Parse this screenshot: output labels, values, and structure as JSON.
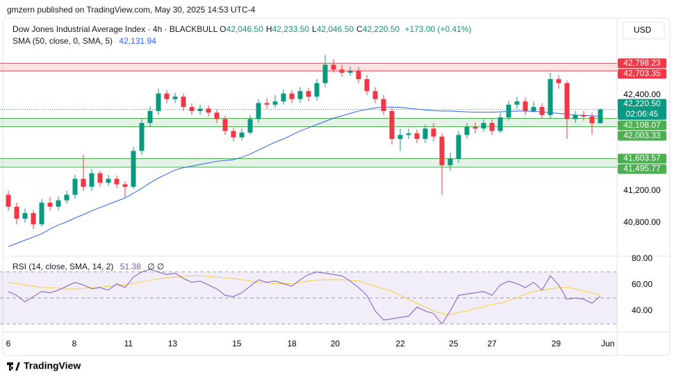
{
  "header": {
    "published": "gmzern published on TradingView.com, May 30, 2025 14:53 UTC-4",
    "symbol": "Dow Jones Industrial Average Index · 4h · BLACKBULL",
    "ohlc": [
      {
        "key": "O",
        "value": "42,046.50"
      },
      {
        "key": "H",
        "value": "42,233.50"
      },
      {
        "key": "L",
        "value": "42,046.50"
      },
      {
        "key": "C",
        "value": "42,220.50"
      }
    ],
    "change": "+173.00 (+0.41%)",
    "currency": "USD"
  },
  "footer": {
    "brand": "TradingView"
  },
  "chart_data": [
    {
      "type": "candlestick",
      "up_color": "#089981",
      "down_color": "#f23645",
      "xlim": [
        -1,
        73
      ],
      "xticks": [
        {
          "value": 0,
          "label": "6"
        },
        {
          "value": 7.9,
          "label": "8"
        },
        {
          "value": 14.4,
          "label": "11"
        },
        {
          "value": 19.7,
          "label": "13"
        },
        {
          "value": 27.4,
          "label": "15"
        },
        {
          "value": 34,
          "label": "18"
        },
        {
          "value": 39.2,
          "label": "20"
        },
        {
          "value": 47,
          "label": "22"
        },
        {
          "value": 53.4,
          "label": "25"
        },
        {
          "value": 58,
          "label": "27"
        },
        {
          "value": 65.7,
          "label": "29"
        },
        {
          "value": 71.9,
          "label": "Jun"
        }
      ],
      "ylim": [
        40380,
        43340
      ],
      "yticks": [
        {
          "value": 40800,
          "label": "40,800.00"
        },
        {
          "value": 41200,
          "label": "41,200.00"
        },
        {
          "value": 42400,
          "label": "42,400.00"
        }
      ],
      "open": [
        41150,
        41000,
        40850,
        40920,
        40780,
        41050,
        41000,
        41080,
        41150,
        41350,
        41250,
        41420,
        41300,
        41350,
        41280,
        41250,
        41700,
        42050,
        42200,
        42420,
        42350,
        42380,
        42250,
        42200,
        42230,
        42180,
        42100,
        41950,
        41870,
        41930,
        42100,
        42300,
        42280,
        42320,
        42420,
        42350,
        42450,
        42380,
        42550,
        42780,
        42720,
        42680,
        42700,
        42600,
        42450,
        42350,
        42200,
        41850,
        41900,
        41920,
        41850,
        41980,
        41880,
        41520,
        41600,
        41900,
        42000,
        41980,
        42050,
        41950,
        42120,
        42280,
        42320,
        42200,
        42250,
        42150,
        42600,
        42550,
        42100,
        42150,
        42130,
        42046.5
      ],
      "high": [
        41200,
        41050,
        40980,
        40960,
        41100,
        41120,
        41130,
        41200,
        41400,
        41650,
        41470,
        41450,
        41400,
        41390,
        41320,
        41750,
        42100,
        42260,
        42480,
        42460,
        42430,
        42420,
        42300,
        42280,
        42270,
        42220,
        42140,
        41990,
        41980,
        42150,
        42350,
        42360,
        42400,
        42470,
        42460,
        42500,
        42490,
        42600,
        42900,
        42850,
        42780,
        42760,
        42750,
        42650,
        42500,
        42400,
        42250,
        41980,
        41980,
        41970,
        42030,
        42050,
        41920,
        41680,
        41950,
        42050,
        42060,
        42100,
        42100,
        42180,
        42330,
        42380,
        42370,
        42320,
        42300,
        42680,
        42650,
        42580,
        42200,
        42200,
        42180,
        42233.5
      ],
      "low": [
        40950,
        40780,
        40800,
        40720,
        40750,
        40950,
        40960,
        41040,
        41100,
        41200,
        41200,
        41250,
        41260,
        41230,
        41120,
        41220,
        41650,
        42000,
        42150,
        42300,
        42300,
        42200,
        42150,
        42150,
        42130,
        42050,
        41900,
        41820,
        41830,
        41900,
        42050,
        42230,
        42240,
        42280,
        42300,
        42300,
        42320,
        42330,
        42500,
        42680,
        42630,
        42640,
        42550,
        42400,
        42300,
        42150,
        41780,
        41700,
        41850,
        41800,
        41800,
        41820,
        41150,
        41450,
        41550,
        41850,
        41920,
        41940,
        41900,
        41920,
        42080,
        42230,
        42150,
        42180,
        42100,
        42100,
        42480,
        41850,
        42050,
        42080,
        41900,
        42046.5
      ],
      "close": [
        41000,
        40850,
        40920,
        40780,
        41050,
        41000,
        41080,
        41150,
        41350,
        41250,
        41420,
        41300,
        41350,
        41280,
        41250,
        41700,
        42050,
        42200,
        42420,
        42350,
        42380,
        42250,
        42200,
        42230,
        42180,
        42100,
        41950,
        41870,
        41930,
        42100,
        42300,
        42280,
        42320,
        42420,
        42350,
        42450,
        42380,
        42550,
        42780,
        42720,
        42680,
        42700,
        42600,
        42450,
        42350,
        42200,
        41850,
        41900,
        41920,
        41850,
        41980,
        41880,
        41520,
        41600,
        41900,
        42000,
        41980,
        42050,
        41950,
        42120,
        42280,
        42320,
        42200,
        42250,
        42150,
        42600,
        42550,
        42100,
        42150,
        42130,
        42046.5,
        42220.5
      ],
      "series": [
        {
          "name": "SMA (50, close, 0, SMA, 5)",
          "color": "#2962ff",
          "last_label": "42,131.94",
          "values": [
            40500,
            40540,
            40580,
            40620,
            40660,
            40720,
            40770,
            40810,
            40860,
            40900,
            40950,
            40990,
            41030,
            41070,
            41110,
            41170,
            41230,
            41300,
            41360,
            41410,
            41460,
            41490,
            41510,
            41530,
            41550,
            41570,
            41580,
            41590,
            41620,
            41660,
            41710,
            41760,
            41810,
            41850,
            41900,
            41950,
            41990,
            42030,
            42070,
            42110,
            42140,
            42170,
            42200,
            42220,
            42240,
            42250,
            42250,
            42245,
            42235,
            42225,
            42215,
            42205,
            42200,
            42200,
            42195,
            42190,
            42185,
            42185,
            42185,
            42190,
            42195,
            42200,
            42200,
            42195,
            42190,
            42180,
            42170,
            42160,
            42150,
            42145,
            42140,
            42131.94
          ]
        }
      ],
      "zones": [
        {
          "values": [
            42703.35,
            42798.23
          ],
          "value_labels": [
            "42,703.35",
            "42,798.23"
          ],
          "color": "#f23645"
        },
        {
          "values": [
            42003.33,
            42108.07
          ],
          "value_labels": [
            "42,003.33",
            "42,108.07"
          ],
          "color": "#4caf50"
        },
        {
          "values": [
            41495.77,
            41603.57
          ],
          "value_labels": [
            "41,495.77",
            "41,603.57"
          ],
          "color": "#4caf50"
        }
      ],
      "last_price": {
        "value": 42220.5,
        "label": "42,220.50",
        "countdown": "02:06:45",
        "color": "#089981"
      }
    },
    {
      "type": "line",
      "xlim": [
        -1,
        73
      ],
      "ylim": [
        24,
        81.6
      ],
      "yticks": [
        {
          "value": 80,
          "label": "80.00"
        },
        {
          "value": 60,
          "label": "60.00"
        },
        {
          "value": 40,
          "label": "40.00"
        }
      ],
      "bands": [
        70,
        50,
        30
      ],
      "legend_note": "∅ ∅",
      "series": [
        {
          "name": "RSI (14, close, SMA, 14, 2)",
          "color": "#7e57c2",
          "last_label": "51.38",
          "values": [
            54.9,
            52,
            47,
            51,
            55,
            54,
            56,
            59,
            62,
            60,
            57,
            58,
            56,
            61,
            58,
            66,
            70,
            72,
            70,
            68,
            69,
            65,
            62,
            63,
            60,
            57,
            52,
            51,
            54,
            59,
            64,
            62,
            63,
            61,
            59,
            64,
            68,
            70,
            69,
            68,
            67,
            63,
            58,
            52,
            40,
            33,
            34,
            35,
            36,
            43,
            40,
            38,
            30,
            40,
            52,
            53,
            54,
            55,
            52,
            60,
            63,
            61,
            58,
            62,
            56,
            67,
            60,
            49,
            50,
            49,
            46,
            51.38
          ]
        },
        {
          "color": "#f7d038",
          "values": [
            62,
            61,
            60,
            59,
            58,
            58,
            57.5,
            57,
            57,
            57.5,
            58,
            58.5,
            59,
            59.5,
            60,
            61,
            62.5,
            63.5,
            64.5,
            65.5,
            66,
            66.5,
            67,
            67,
            66.5,
            66,
            65.5,
            65,
            64,
            63,
            62,
            61.5,
            61,
            61,
            61,
            62,
            63,
            63.5,
            64,
            64,
            64,
            63.5,
            63,
            61,
            59,
            57,
            55,
            52,
            49,
            46,
            43,
            40,
            38,
            37,
            39,
            40,
            42,
            43,
            45,
            46,
            48,
            50,
            53,
            55,
            56,
            57,
            58,
            58,
            57,
            55,
            54,
            52
          ]
        }
      ]
    }
  ]
}
